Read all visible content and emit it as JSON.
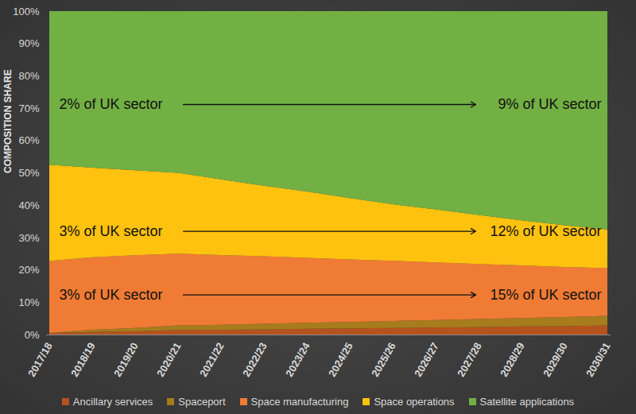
{
  "chart_data": {
    "type": "area",
    "stacked": true,
    "ylabel": "COMPOSITION SHARE",
    "categories": [
      "2017/18",
      "2018/19",
      "2019/20",
      "2020/21",
      "2021/22",
      "2022/23",
      "2023/24",
      "2024/25",
      "2025/26",
      "2026/27",
      "2027/28",
      "2028/29",
      "2029/30",
      "2030/31"
    ],
    "ylim": [
      0,
      100
    ],
    "yticks": [
      {
        "value": 0,
        "label": "0%"
      },
      {
        "value": 10,
        "label": "10%"
      },
      {
        "value": 20,
        "label": "20%"
      },
      {
        "value": 30,
        "label": "30%"
      },
      {
        "value": 40,
        "label": "40%"
      },
      {
        "value": 50,
        "label": "50%"
      },
      {
        "value": 60,
        "label": "60%"
      },
      {
        "value": 70,
        "label": "70%"
      },
      {
        "value": 80,
        "label": "80%"
      },
      {
        "value": 90,
        "label": "90%"
      },
      {
        "value": 100,
        "label": "100%"
      }
    ],
    "legend": "bottom",
    "series": [
      {
        "name": "Ancillary services",
        "color": "#b5531f",
        "values": [
          0.5,
          0.8,
          1.0,
          1.4,
          1.5,
          1.6,
          1.8,
          1.9,
          2.0,
          2.2,
          2.3,
          2.5,
          2.6,
          2.8
        ]
      },
      {
        "name": "Spaceport",
        "color": "#a67c1c",
        "values": [
          0,
          0.7,
          1.0,
          1.4,
          1.5,
          1.7,
          1.8,
          2.0,
          2.2,
          2.3,
          2.5,
          2.6,
          2.8,
          3.0
        ]
      },
      {
        "name": "Space manufacturing",
        "color": "#f07b34",
        "values": [
          22.2,
          22.4,
          22.5,
          22.2,
          21.6,
          20.9,
          20.1,
          19.3,
          18.6,
          17.8,
          17.0,
          16.3,
          15.5,
          14.7
        ]
      },
      {
        "name": "Space operations",
        "color": "#ffc20e",
        "values": [
          29.8,
          27.7,
          26.3,
          25.0,
          23.4,
          21.8,
          20.5,
          19.0,
          17.5,
          16.4,
          15.2,
          13.9,
          12.9,
          12.0
        ]
      },
      {
        "name": "Satellite applications",
        "color": "#72b043",
        "values": [
          47.5,
          48.4,
          49.2,
          50.0,
          52.0,
          54.0,
          55.8,
          57.8,
          59.7,
          61.3,
          63.0,
          64.7,
          66.2,
          67.5
        ]
      }
    ],
    "annotations": [
      {
        "series": "Satellite applications",
        "start": "2% of UK sector",
        "end": "9% of UK sector"
      },
      {
        "series": "Space operations",
        "start": "3% of UK sector",
        "end": "12% of UK sector"
      },
      {
        "series": "Space manufacturing",
        "start": "3% of UK sector",
        "end": "15% of UK sector"
      }
    ]
  }
}
